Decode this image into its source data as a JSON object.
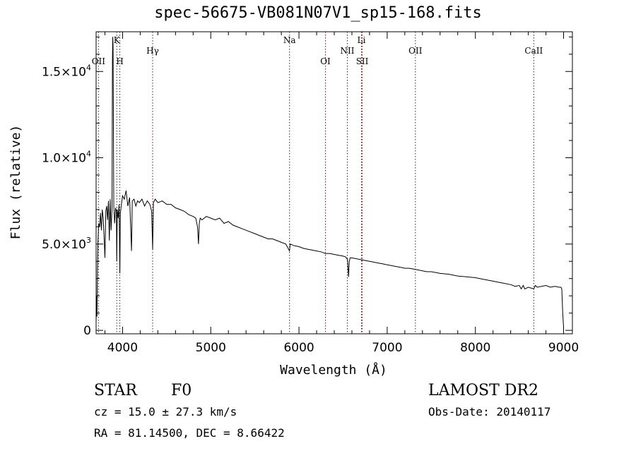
{
  "chart_data": {
    "type": "line",
    "title": "spec-56675-VB081N07V1_sp15-168.fits",
    "xlabel": "Wavelength (Å)",
    "ylabel": "Flux (relative)",
    "xlim": [
      3700,
      9100
    ],
    "ylim": [
      -200,
      17300
    ],
    "xticks": [
      {
        "value": 4000,
        "label": "4000"
      },
      {
        "value": 5000,
        "label": "5000"
      },
      {
        "value": 6000,
        "label": "6000"
      },
      {
        "value": 7000,
        "label": "7000"
      },
      {
        "value": 8000,
        "label": "8000"
      },
      {
        "value": 9000,
        "label": "9000"
      }
    ],
    "yticks": [
      {
        "value": 0,
        "label": "0",
        "exp": ""
      },
      {
        "value": 5000,
        "label": "5.0×10",
        "exp": "3"
      },
      {
        "value": 10000,
        "label": "1.0×10",
        "exp": "4"
      },
      {
        "value": 15000,
        "label": "1.5×10",
        "exp": "4"
      }
    ],
    "lines": [
      {
        "name": "OII",
        "wl": 3727,
        "row": 1
      },
      {
        "name": "K",
        "wl": 3934,
        "row": 0
      },
      {
        "name": "H",
        "wl": 3969,
        "row": 1
      },
      {
        "name": "Hγ",
        "wl": 4341,
        "row": 0.5
      },
      {
        "name": "Na",
        "wl": 5893,
        "row": 0
      },
      {
        "name": "OI",
        "wl": 6300,
        "row": 1
      },
      {
        "name": "NII",
        "wl": 6548,
        "row": 0.5
      },
      {
        "name": "Li",
        "wl": 6708,
        "row": 0
      },
      {
        "name": "SII",
        "wl": 6717,
        "row": 1
      },
      {
        "name": "OII",
        "wl": 7320,
        "row": 0.5
      },
      {
        "name": "CaII",
        "wl": 8662,
        "row": 0.5
      }
    ],
    "series": [
      {
        "x": [
          3700,
          3705,
          3710,
          3715,
          3720,
          3730,
          3740,
          3750,
          3760,
          3770,
          3780,
          3790,
          3800,
          3810,
          3820,
          3830,
          3840,
          3850,
          3860,
          3870,
          3880,
          3885,
          3888,
          3892,
          3900,
          3910,
          3920,
          3930,
          3934,
          3940,
          3950,
          3960,
          3969,
          3975,
          3990,
          4000,
          4020,
          4040,
          4060,
          4080,
          4090,
          4101,
          4110,
          4130,
          4150,
          4170,
          4190,
          4220,
          4250,
          4280,
          4310,
          4330,
          4341,
          4350,
          4370,
          4400,
          4450,
          4500,
          4550,
          4600,
          4650,
          4700,
          4750,
          4800,
          4830,
          4850,
          4861,
          4870,
          4880,
          4900,
          4950,
          5000,
          5050,
          5100,
          5150,
          5200,
          5250,
          5300,
          5350,
          5400,
          5450,
          5500,
          5550,
          5600,
          5650,
          5700,
          5750,
          5800,
          5850,
          5893,
          5900,
          5950,
          6000,
          6050,
          6100,
          6150,
          6200,
          6250,
          6300,
          6350,
          6400,
          6450,
          6500,
          6530,
          6550,
          6563,
          6570,
          6580,
          6600,
          6650,
          6700,
          6750,
          6800,
          6850,
          6900,
          6950,
          7000,
          7050,
          7100,
          7150,
          7200,
          7250,
          7300,
          7350,
          7400,
          7450,
          7500,
          7600,
          7700,
          7800,
          7900,
          8000,
          8100,
          8200,
          8300,
          8400,
          8450,
          8498,
          8520,
          8542,
          8560,
          8600,
          8662,
          8680,
          8700,
          8800,
          8850,
          8900,
          8950,
          8970,
          8980,
          8990,
          9000
        ],
        "y": [
          500,
          2000,
          800,
          3500,
          5000,
          6200,
          6000,
          6800,
          5800,
          7000,
          6500,
          5500,
          4200,
          6900,
          7200,
          6400,
          7500,
          5200,
          7600,
          5800,
          7000,
          15600,
          17000,
          16500,
          7200,
          6200,
          7100,
          6900,
          4000,
          7000,
          6500,
          7300,
          3300,
          6800,
          7400,
          7800,
          7600,
          8100,
          7200,
          7700,
          6200,
          4600,
          7500,
          7600,
          7200,
          7500,
          7400,
          7600,
          7200,
          7500,
          7300,
          6900,
          4700,
          7400,
          7600,
          7400,
          7500,
          7300,
          7300,
          7100,
          7000,
          6900,
          6700,
          6600,
          6500,
          6000,
          5000,
          6200,
          6500,
          6400,
          6600,
          6500,
          6400,
          6500,
          6200,
          6300,
          6100,
          6000,
          5900,
          5800,
          5700,
          5600,
          5500,
          5400,
          5300,
          5300,
          5200,
          5100,
          5000,
          4600,
          5000,
          4900,
          4850,
          4750,
          4700,
          4650,
          4600,
          4550,
          4450,
          4450,
          4400,
          4350,
          4300,
          4250,
          4100,
          3100,
          4000,
          4200,
          4200,
          4150,
          4100,
          4050,
          4000,
          3950,
          3900,
          3850,
          3800,
          3750,
          3700,
          3650,
          3600,
          3600,
          3550,
          3500,
          3450,
          3400,
          3400,
          3300,
          3250,
          3150,
          3100,
          3050,
          2950,
          2850,
          2750,
          2650,
          2550,
          2600,
          2400,
          2600,
          2400,
          2500,
          2400,
          2600,
          2500,
          2600,
          2500,
          2550,
          2500,
          2500,
          2400,
          1000,
          200
        ]
      }
    ]
  },
  "footer": {
    "object_type": "STAR",
    "subclass": "F0",
    "survey": "LAMOST DR2",
    "cz_text": "cz = 15.0 ± 27.3 km/s",
    "obs_date": "Obs-Date: 20140117",
    "radec": "RA =  81.14500, DEC =   8.66422"
  }
}
